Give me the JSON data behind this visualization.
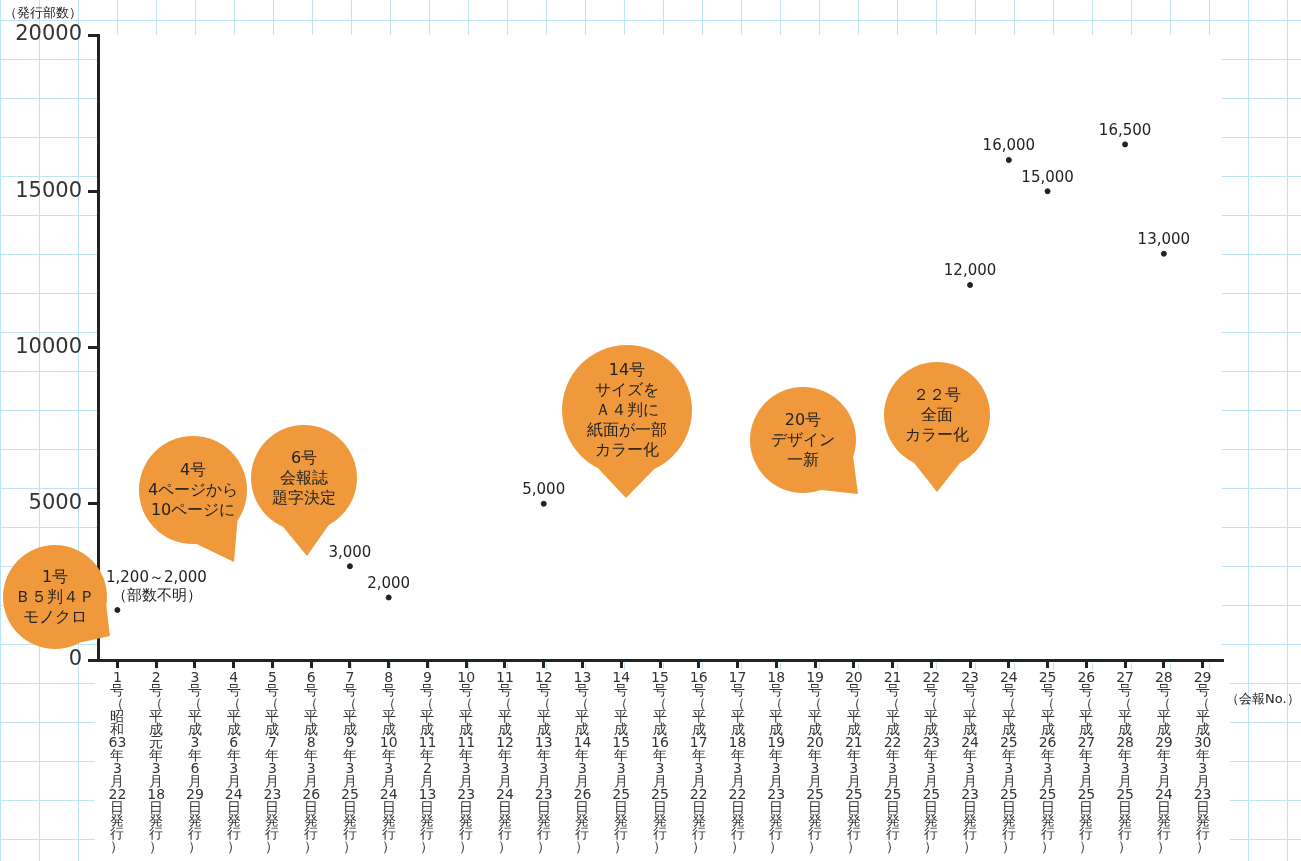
{
  "chart_data": {
    "type": "scatter",
    "ylabel": "（発行部数）",
    "xlabel": "（会報No.）",
    "categories": [
      "1号（昭和63年3月22日発行）",
      "2号（平成元年3月18日発行）",
      "3号（平成3年6月29日発行）",
      "4号（平成6年3月24日発行）",
      "5号（平成7年3月23日発行）",
      "6号（平成8年3月26日発行）",
      "7号（平成9年3月25日発行）",
      "8号（平成10年3月24日発行）",
      "9号（平成11年2月13日発行）",
      "10号（平成11年3月23日発行）",
      "11号（平成12年3月24日発行）",
      "12号（平成13年3月23日発行）",
      "13号（平成14年3月26日発行）",
      "14号（平成15年3月25日発行）",
      "15号（平成16年3月25日発行）",
      "16号（平成17年3月22日発行）",
      "17号（平成18年3月22日発行）",
      "18号（平成19年3月23日発行）",
      "19号（平成20年3月25日発行）",
      "20号（平成21年3月25日発行）",
      "21号（平成22年3月25日発行）",
      "22号（平成23年3月25日発行）",
      "23号（平成24年3月23日発行）",
      "24号（平成25年3月25日発行）",
      "25号（平成26年3月25日発行）",
      "26号（平成27年3月25日発行）",
      "27号（平成28年3月25日発行）",
      "28号（平成29年3月24日発行）",
      "29号（平成30年3月23日発行）"
    ],
    "values": [
      1600,
      null,
      null,
      null,
      null,
      null,
      3000,
      2000,
      null,
      null,
      null,
      5000,
      null,
      null,
      null,
      null,
      null,
      null,
      null,
      null,
      null,
      null,
      12000,
      16000,
      15000,
      null,
      16500,
      13000,
      null
    ],
    "value_labels": [
      "1,200～2,000（部数不明）",
      null,
      null,
      null,
      null,
      null,
      "3,000",
      "2,000",
      null,
      null,
      null,
      "5,000",
      null,
      null,
      null,
      null,
      null,
      null,
      null,
      null,
      null,
      null,
      "12,000",
      "16,000",
      "15,000",
      null,
      "16,500",
      "13,000",
      null
    ],
    "marker": "circle",
    "ylim": [
      0,
      20000
    ],
    "yticks": [
      0,
      5000,
      10000,
      15000,
      20000
    ],
    "annotations": [
      "1号Ｂ５判４Ｐモノクロ",
      "4号4ページから10ページに",
      "6号会報誌題字決定",
      "14号サイズをＡ４判に紙面が一部カラー化",
      "20号デザイン一新",
      "２２号全面カラー化"
    ]
  }
}
